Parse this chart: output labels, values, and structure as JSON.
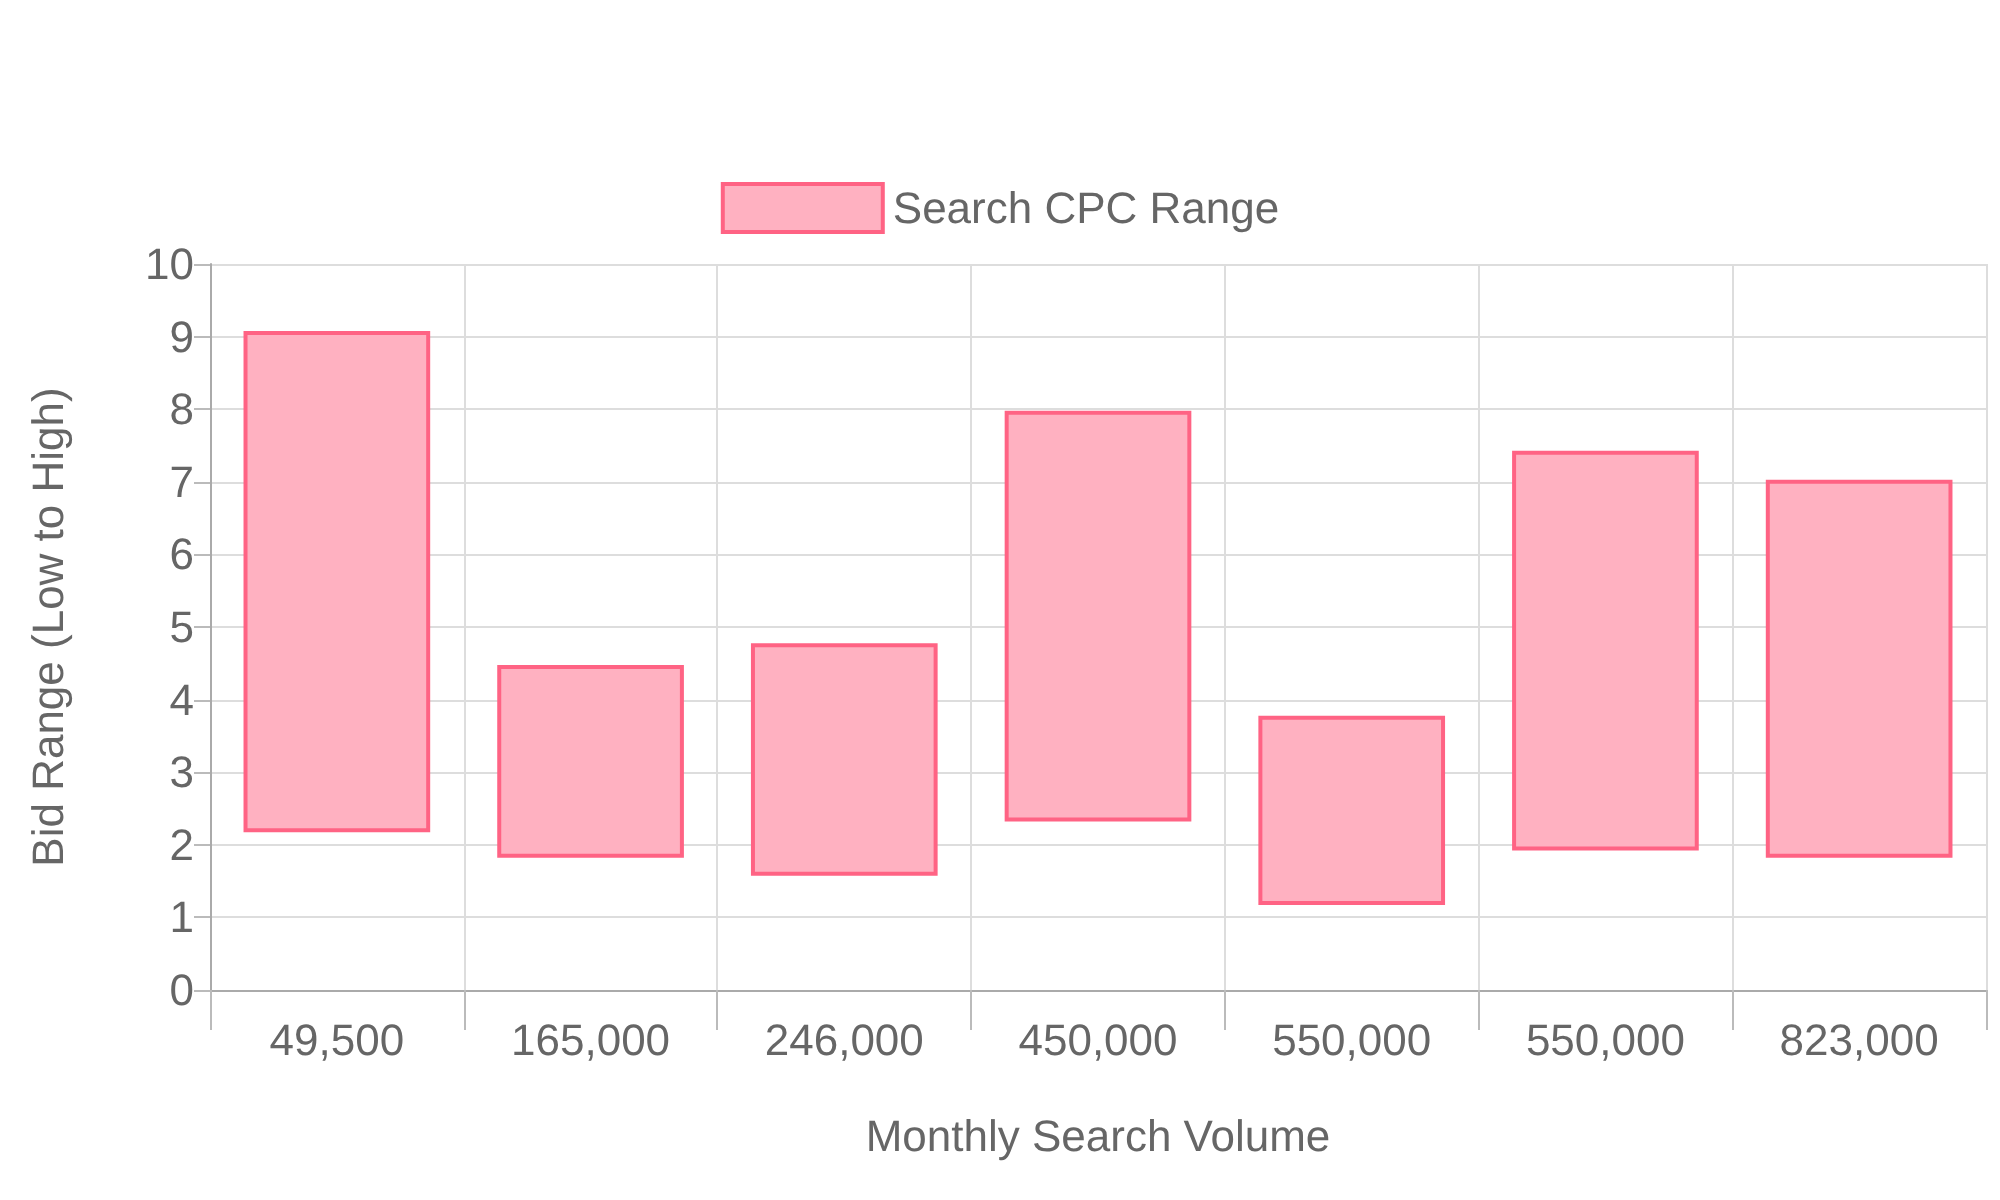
{
  "chart_data": {
    "type": "bar",
    "xlabel": "Monthly Search Volume",
    "ylabel": "Bid Range (Low to High)",
    "categories": [
      "49,500",
      "165,000",
      "246,000",
      "450,000",
      "550,000",
      "550,000",
      "823,000"
    ],
    "series": [
      {
        "name": "Search CPC Range",
        "color": "#ffb1c1",
        "values": [
          6.85,
          2.6,
          3.15,
          5.6,
          2.55,
          5.45,
          5.15
        ],
        "base": [
          2.2,
          1.85,
          1.6,
          2.35,
          1.2,
          1.95,
          1.85
        ]
      }
    ],
    "ylim": [
      0,
      10
    ],
    "yticks": [
      0,
      1,
      2,
      3,
      4,
      5,
      6,
      7,
      8,
      9,
      10
    ],
    "grid": true,
    "legend": "top"
  }
}
